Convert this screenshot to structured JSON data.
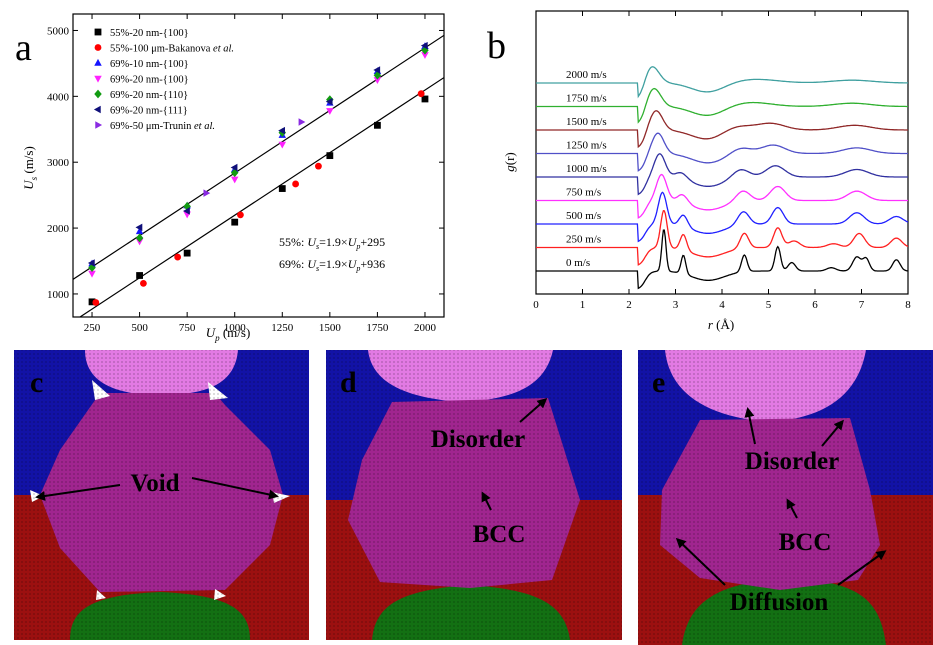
{
  "colors": {
    "black": "#000000",
    "red": "#ff0000",
    "blue": "#1515ff",
    "magenta": "#ff22ff",
    "green": "#129b12",
    "navy": "#10107a",
    "violet": "#8a2be2",
    "grain_pink": "#e27ae3",
    "grain_blue": "#1212a6",
    "grain_red": "#9c1010",
    "grain_purple": "#a0258f",
    "grain_green": "#137013",
    "void_white": "#ffffff"
  },
  "panel_labels": {
    "a": "a",
    "b": "b",
    "c": "c",
    "d": "d",
    "e": "e"
  },
  "chart_data": [
    {
      "type": "scatter",
      "panel": "a",
      "xlabel_main": "U",
      "xlabel_sub": "p",
      "xlabel_unit": " (m/s)",
      "ylabel_main": "U",
      "ylabel_sub": "s",
      "ylabel_unit": " (m/s)",
      "xlim": [
        150,
        2100
      ],
      "ylim": [
        650,
        5250
      ],
      "xticks": [
        250,
        500,
        750,
        1000,
        1250,
        1500,
        1750,
        2000
      ],
      "yticks": [
        1000,
        2000,
        3000,
        4000,
        5000
      ],
      "series": [
        {
          "name": "55%-20 nm-{100}",
          "marker": "square",
          "color": "#000000",
          "x": [
            250,
            500,
            750,
            1000,
            1250,
            1500,
            1750,
            2000
          ],
          "y": [
            880,
            1280,
            1620,
            2090,
            2600,
            3100,
            3560,
            3960
          ]
        },
        {
          "name_pre": "55%-100 μm-Bakanova ",
          "name_italic": "et al.",
          "marker": "circle",
          "color": "#ff0000",
          "x": [
            270,
            520,
            700,
            1030,
            1320,
            1440,
            1980
          ],
          "y": [
            870,
            1160,
            1560,
            2200,
            2670,
            2940,
            4040
          ]
        },
        {
          "name": "69%-10 nm-{100}",
          "marker": "triangle-up",
          "color": "#1515ff",
          "x": [
            250,
            500,
            750,
            1000,
            1250,
            1500,
            1750,
            2000
          ],
          "y": [
            1460,
            1950,
            2340,
            2890,
            3410,
            3900,
            4380,
            4760
          ]
        },
        {
          "name": "69%-20 nm-{100}",
          "marker": "triangle-down",
          "color": "#ff22ff",
          "x": [
            250,
            500,
            750,
            1000,
            1250,
            1500,
            1750,
            2000
          ],
          "y": [
            1310,
            1800,
            2210,
            2740,
            3270,
            3780,
            4250,
            4630
          ]
        },
        {
          "name": "69%-20 nm-{110}",
          "marker": "diamond",
          "color": "#129b12",
          "x": [
            250,
            500,
            750,
            1000,
            1250,
            1500,
            1750,
            2000
          ],
          "y": [
            1400,
            1850,
            2330,
            2840,
            3450,
            3950,
            4320,
            4700
          ]
        },
        {
          "name": "69%-20 nm-{111}",
          "marker": "triangle-left",
          "color": "#10107a",
          "x": [
            250,
            500,
            750,
            1000,
            1250,
            1500,
            1750,
            2000
          ],
          "y": [
            1470,
            2010,
            2260,
            2920,
            3480,
            3920,
            4400,
            4770
          ]
        },
        {
          "name_pre": "69%-50 μm-Trunin ",
          "name_italic": "et al.",
          "marker": "triangle-right",
          "color": "#8a2be2",
          "x": [
            850,
            1350
          ],
          "y": [
            2530,
            3610
          ]
        }
      ],
      "fits": [
        {
          "label": "55%",
          "slope": 1.9,
          "intercept": 295
        },
        {
          "label": "69%",
          "slope": 1.9,
          "intercept": 936
        }
      ],
      "eq1": {
        "pre": "55%: ",
        "u1": "U",
        "s1": "s",
        "mid": "=1.9×",
        "u2": "U",
        "s2": "p",
        "post": "+295"
      },
      "eq2": {
        "pre": "69%: ",
        "u1": "U",
        "s1": "s",
        "mid": "=1.9×",
        "u2": "U",
        "s2": "p",
        "post": "+936"
      }
    },
    {
      "type": "line",
      "panel": "b",
      "ylabel_main": "g",
      "ylabel_rest": "(r)",
      "xlabel_main": "r",
      "xlabel_unit": " (Å)",
      "xlim": [
        0,
        8
      ],
      "xticks": [
        0,
        1,
        2,
        3,
        4,
        5,
        6,
        7,
        8
      ],
      "series": [
        {
          "name": "0 m/s",
          "color": "#000000",
          "offset": 0,
          "peaks": [
            [
              2.75,
              0.9,
              0.045
            ],
            [
              3.17,
              0.4,
              0.05
            ],
            [
              4.48,
              0.36,
              0.06
            ],
            [
              5.2,
              0.52,
              0.06
            ],
            [
              5.5,
              0.18,
              0.08
            ],
            [
              6.35,
              0.07,
              0.1
            ],
            [
              6.9,
              0.3,
              0.09
            ],
            [
              7.1,
              0.26,
              0.07
            ],
            [
              7.75,
              0.24,
              0.08
            ]
          ]
        },
        {
          "name": "250 m/s",
          "color": "#ff2020",
          "offset": 1,
          "peaks": [
            [
              2.75,
              0.8,
              0.07
            ],
            [
              3.17,
              0.34,
              0.07
            ],
            [
              4.48,
              0.32,
              0.09
            ],
            [
              5.2,
              0.42,
              0.09
            ],
            [
              5.55,
              0.14,
              0.12
            ],
            [
              6.4,
              0.08,
              0.14
            ],
            [
              6.95,
              0.3,
              0.12
            ],
            [
              7.75,
              0.2,
              0.12
            ]
          ]
        },
        {
          "name": "500 m/s",
          "color": "#2020ff",
          "offset": 2,
          "peaks": [
            [
              2.72,
              0.68,
              0.09
            ],
            [
              3.17,
              0.25,
              0.09
            ],
            [
              4.46,
              0.28,
              0.12
            ],
            [
              5.2,
              0.35,
              0.12
            ],
            [
              6.9,
              0.24,
              0.16
            ],
            [
              7.75,
              0.16,
              0.15
            ]
          ]
        },
        {
          "name": "750 m/s",
          "color": "#ff30ff",
          "offset": 3,
          "peaks": [
            [
              2.7,
              0.56,
              0.11
            ],
            [
              3.15,
              0.18,
              0.11
            ],
            [
              4.45,
              0.22,
              0.15
            ],
            [
              5.2,
              0.3,
              0.16
            ],
            [
              6.9,
              0.2,
              0.2
            ]
          ]
        },
        {
          "name": "1000 m/s",
          "color": "#3030a0",
          "offset": 4,
          "peaks": [
            [
              2.66,
              0.5,
              0.12
            ],
            [
              3.12,
              0.14,
              0.13
            ],
            [
              4.4,
              0.18,
              0.18
            ],
            [
              5.15,
              0.24,
              0.2
            ],
            [
              6.9,
              0.16,
              0.25
            ]
          ]
        },
        {
          "name": "1250 m/s",
          "color": "#5050c8",
          "offset": 5,
          "peaks": [
            [
              2.62,
              0.44,
              0.13
            ],
            [
              4.4,
              0.13,
              0.22
            ],
            [
              5.1,
              0.18,
              0.25
            ],
            [
              6.9,
              0.12,
              0.3
            ]
          ]
        },
        {
          "name": "1500 m/s",
          "color": "#902828",
          "offset": 6,
          "peaks": [
            [
              2.58,
              0.42,
              0.14
            ],
            [
              4.3,
              0.1,
              0.3
            ],
            [
              5.05,
              0.14,
              0.3
            ],
            [
              6.85,
              0.1,
              0.35
            ]
          ]
        },
        {
          "name": "1750 m/s",
          "color": "#30b030",
          "offset": 7,
          "peaks": [
            [
              2.53,
              0.4,
              0.15
            ],
            [
              4.6,
              0.09,
              0.45
            ],
            [
              6.8,
              0.07,
              0.4
            ]
          ]
        },
        {
          "name": "2000 m/s",
          "color": "#40a0a0",
          "offset": 8,
          "peaks": [
            [
              2.48,
              0.38,
              0.16
            ],
            [
              4.7,
              0.08,
              0.5
            ],
            [
              6.8,
              0.06,
              0.45
            ]
          ]
        }
      ]
    }
  ],
  "panel_c": {
    "void": "Void"
  },
  "panel_d": {
    "disorder": "Disorder",
    "bcc": "BCC"
  },
  "panel_e": {
    "disorder": "Disorder",
    "bcc": "BCC",
    "diffusion": "Diffusion"
  }
}
